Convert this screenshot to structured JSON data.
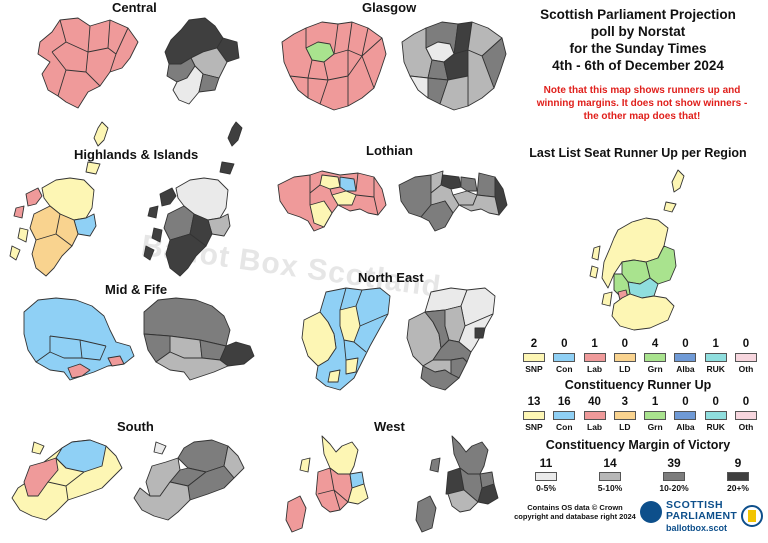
{
  "header": {
    "title_lines": [
      "Scottish Parliament Projection",
      "poll by Norstat",
      "for the Sunday Times",
      "4th - 6th of December 2024"
    ],
    "note_lines": [
      "Note that this map shows runners up and",
      "winning margins. It does not show winners -",
      "the other map does that!"
    ]
  },
  "watermark": "Ballot Box Scotland",
  "regions": [
    {
      "name": "Central"
    },
    {
      "name": "Glasgow"
    },
    {
      "name": "Highlands & Islands"
    },
    {
      "name": "Lothian"
    },
    {
      "name": "Mid & Fife"
    },
    {
      "name": "North East"
    },
    {
      "name": "South"
    },
    {
      "name": "West"
    }
  ],
  "colors": {
    "SNP": "#fdf6b4",
    "Con": "#8fd0f5",
    "Lab": "#ef9a9a",
    "LD": "#f9d38f",
    "Grn": "#a9e38e",
    "Alba": "#6f9ad6",
    "RUK": "#8fdede",
    "Oth": "#f7d6de",
    "m0_5": "#eaeaea",
    "m5_10": "#b7b7b7",
    "m10_20": "#7d7d7d",
    "m20": "#3f3f3f"
  },
  "list_runner_up": {
    "title": "Last List Seat Runner Up per Region",
    "items": [
      {
        "party": "SNP",
        "count": "2"
      },
      {
        "party": "Con",
        "count": "0"
      },
      {
        "party": "Lab",
        "count": "1"
      },
      {
        "party": "LD",
        "count": "0"
      },
      {
        "party": "Grn",
        "count": "4"
      },
      {
        "party": "Alba",
        "count": "0"
      },
      {
        "party": "RUK",
        "count": "1"
      },
      {
        "party": "Oth",
        "count": "0"
      }
    ]
  },
  "constituency_runner_up": {
    "title": "Constituency Runner Up",
    "items": [
      {
        "party": "SNP",
        "count": "13"
      },
      {
        "party": "Con",
        "count": "16"
      },
      {
        "party": "Lab",
        "count": "40"
      },
      {
        "party": "LD",
        "count": "3"
      },
      {
        "party": "Grn",
        "count": "1"
      },
      {
        "party": "Alba",
        "count": "0"
      },
      {
        "party": "RUK",
        "count": "0"
      },
      {
        "party": "Oth",
        "count": "0"
      }
    ]
  },
  "margin_of_victory": {
    "title": "Constituency Margin of Victory",
    "items": [
      {
        "label": "0-5%",
        "count": "11"
      },
      {
        "label": "5-10%",
        "count": "14"
      },
      {
        "label": "10-20%",
        "count": "39"
      },
      {
        "label": "20+%",
        "count": "9"
      }
    ]
  },
  "credit_lines": [
    "Contains OS data © Crown",
    "copyright and database right 2024"
  ],
  "logo": {
    "line1": "SCOTTISH",
    "line2": "PARLIAMENT",
    "line3": "ballotbox.scot"
  }
}
